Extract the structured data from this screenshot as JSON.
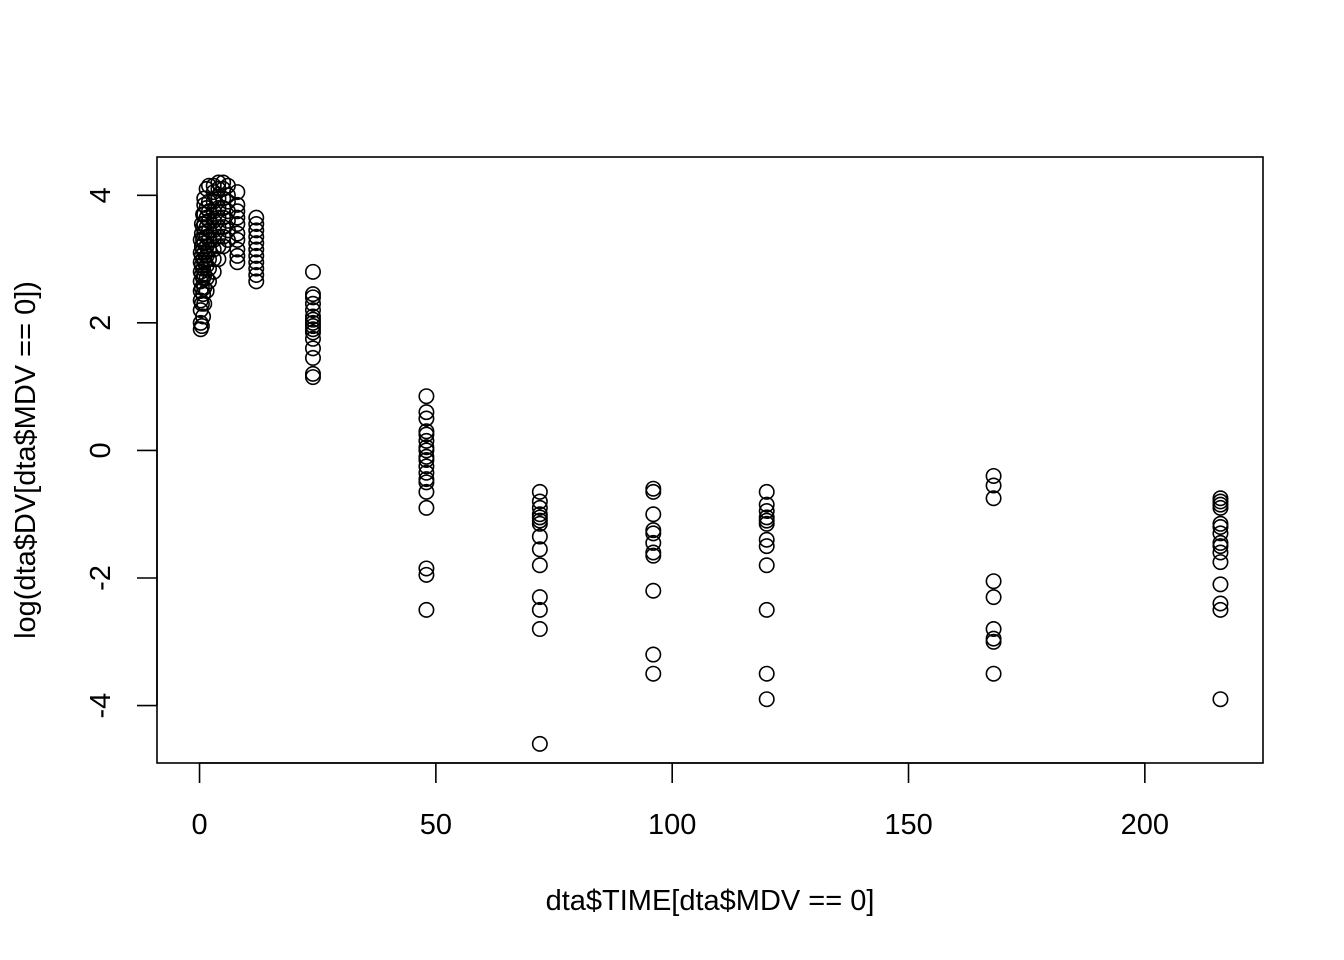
{
  "chart_data": {
    "type": "scatter",
    "title": "",
    "xlabel": "dta$TIME[dta$MDV == 0]",
    "ylabel": "log(dta$DV[dta$MDV == 0])",
    "xlim": [
      -9,
      225
    ],
    "ylim": [
      -4.9,
      4.6
    ],
    "x_ticks": [
      0,
      50,
      100,
      150,
      200
    ],
    "x_tick_labels": [
      "0",
      "50",
      "100",
      "150",
      "200"
    ],
    "y_ticks": [
      -4,
      -2,
      0,
      2,
      4
    ],
    "y_tick_labels": [
      "-4",
      "-2",
      "0",
      "2",
      "4"
    ],
    "marker": "open-circle",
    "color": "#000000",
    "points": [
      [
        0.25,
        1.9
      ],
      [
        0.25,
        2.0
      ],
      [
        0.25,
        2.2
      ],
      [
        0.25,
        2.35
      ],
      [
        0.25,
        2.5
      ],
      [
        0.25,
        2.65
      ],
      [
        0.25,
        2.8
      ],
      [
        0.25,
        2.95
      ],
      [
        0.25,
        3.1
      ],
      [
        0.25,
        3.3
      ],
      [
        0.5,
        1.95
      ],
      [
        0.5,
        2.3
      ],
      [
        0.5,
        2.55
      ],
      [
        0.5,
        2.75
      ],
      [
        0.5,
        2.9
      ],
      [
        0.5,
        3.05
      ],
      [
        0.5,
        3.2
      ],
      [
        0.5,
        3.4
      ],
      [
        0.5,
        3.55
      ],
      [
        0.75,
        2.1
      ],
      [
        0.75,
        2.45
      ],
      [
        0.75,
        2.7
      ],
      [
        0.75,
        2.85
      ],
      [
        0.75,
        3.0
      ],
      [
        0.75,
        3.15
      ],
      [
        0.75,
        3.3
      ],
      [
        0.75,
        3.5
      ],
      [
        0.75,
        3.7
      ],
      [
        1,
        2.3
      ],
      [
        1,
        2.55
      ],
      [
        1,
        2.75
      ],
      [
        1,
        2.95
      ],
      [
        1,
        3.1
      ],
      [
        1,
        3.25
      ],
      [
        1,
        3.4
      ],
      [
        1,
        3.55
      ],
      [
        1,
        3.7
      ],
      [
        1,
        3.85
      ],
      [
        1,
        3.95
      ],
      [
        1.5,
        2.5
      ],
      [
        1.5,
        2.7
      ],
      [
        1.5,
        2.9
      ],
      [
        1.5,
        3.05
      ],
      [
        1.5,
        3.2
      ],
      [
        1.5,
        3.35
      ],
      [
        1.5,
        3.5
      ],
      [
        1.5,
        3.65
      ],
      [
        1.5,
        3.8
      ],
      [
        1.5,
        4.1
      ],
      [
        2,
        2.65
      ],
      [
        2,
        2.85
      ],
      [
        2,
        3.0
      ],
      [
        2,
        3.15
      ],
      [
        2,
        3.3
      ],
      [
        2,
        3.45
      ],
      [
        2,
        3.6
      ],
      [
        2,
        3.75
      ],
      [
        2,
        3.9
      ],
      [
        2,
        4.15
      ],
      [
        3,
        2.8
      ],
      [
        3,
        3.0
      ],
      [
        3,
        3.15
      ],
      [
        3,
        3.3
      ],
      [
        3,
        3.45
      ],
      [
        3,
        3.6
      ],
      [
        3,
        3.75
      ],
      [
        3,
        3.9
      ],
      [
        3,
        4.05
      ],
      [
        3,
        4.15
      ],
      [
        4,
        3.0
      ],
      [
        4,
        3.2
      ],
      [
        4,
        3.35
      ],
      [
        4,
        3.5
      ],
      [
        4,
        3.65
      ],
      [
        4,
        3.8
      ],
      [
        4,
        3.95
      ],
      [
        4,
        4.1
      ],
      [
        4,
        4.2
      ],
      [
        5,
        3.2
      ],
      [
        5,
        3.35
      ],
      [
        5,
        3.5
      ],
      [
        5,
        3.65
      ],
      [
        5,
        3.8
      ],
      [
        5,
        3.95
      ],
      [
        5,
        4.1
      ],
      [
        5,
        4.2
      ],
      [
        6,
        3.3
      ],
      [
        6,
        3.45
      ],
      [
        6,
        3.6
      ],
      [
        6,
        3.75
      ],
      [
        6,
        3.9
      ],
      [
        6,
        4.0
      ],
      [
        6,
        4.15
      ],
      [
        8,
        2.95
      ],
      [
        8,
        3.05
      ],
      [
        8,
        3.15
      ],
      [
        8,
        3.3
      ],
      [
        8,
        3.4
      ],
      [
        8,
        3.55
      ],
      [
        8,
        3.65
      ],
      [
        8,
        3.75
      ],
      [
        8,
        3.85
      ],
      [
        8,
        4.05
      ],
      [
        12,
        2.65
      ],
      [
        12,
        2.75
      ],
      [
        12,
        2.85
      ],
      [
        12,
        2.95
      ],
      [
        12,
        3.05
      ],
      [
        12,
        3.15
      ],
      [
        12,
        3.25
      ],
      [
        12,
        3.35
      ],
      [
        12,
        3.45
      ],
      [
        12,
        3.55
      ],
      [
        12,
        3.65
      ],
      [
        24,
        1.15
      ],
      [
        24,
        1.2
      ],
      [
        24,
        1.45
      ],
      [
        24,
        1.6
      ],
      [
        24,
        1.75
      ],
      [
        24,
        1.85
      ],
      [
        24,
        1.9
      ],
      [
        24,
        1.95
      ],
      [
        24,
        2.0
      ],
      [
        24,
        2.05
      ],
      [
        24,
        2.1
      ],
      [
        24,
        2.2
      ],
      [
        24,
        2.3
      ],
      [
        24,
        2.4
      ],
      [
        24,
        2.45
      ],
      [
        24,
        2.8
      ],
      [
        48,
        -2.5
      ],
      [
        48,
        -1.95
      ],
      [
        48,
        -1.85
      ],
      [
        48,
        -0.9
      ],
      [
        48,
        -0.65
      ],
      [
        48,
        -0.5
      ],
      [
        48,
        -0.45
      ],
      [
        48,
        -0.35
      ],
      [
        48,
        -0.25
      ],
      [
        48,
        -0.15
      ],
      [
        48,
        -0.1
      ],
      [
        48,
        0.0
      ],
      [
        48,
        0.05
      ],
      [
        48,
        0.15
      ],
      [
        48,
        0.25
      ],
      [
        48,
        0.3
      ],
      [
        48,
        0.5
      ],
      [
        48,
        0.6
      ],
      [
        48,
        0.85
      ],
      [
        72,
        -4.6
      ],
      [
        72,
        -2.8
      ],
      [
        72,
        -2.5
      ],
      [
        72,
        -2.3
      ],
      [
        72,
        -1.8
      ],
      [
        72,
        -1.55
      ],
      [
        72,
        -1.35
      ],
      [
        72,
        -1.15
      ],
      [
        72,
        -1.1
      ],
      [
        72,
        -1.05
      ],
      [
        72,
        -1.0
      ],
      [
        72,
        -0.9
      ],
      [
        72,
        -0.8
      ],
      [
        72,
        -0.65
      ],
      [
        96,
        -3.5
      ],
      [
        96,
        -3.2
      ],
      [
        96,
        -2.2
      ],
      [
        96,
        -1.65
      ],
      [
        96,
        -1.6
      ],
      [
        96,
        -1.45
      ],
      [
        96,
        -1.3
      ],
      [
        96,
        -1.25
      ],
      [
        96,
        -1.0
      ],
      [
        96,
        -0.65
      ],
      [
        96,
        -0.6
      ],
      [
        120,
        -3.9
      ],
      [
        120,
        -3.5
      ],
      [
        120,
        -2.5
      ],
      [
        120,
        -1.8
      ],
      [
        120,
        -1.5
      ],
      [
        120,
        -1.4
      ],
      [
        120,
        -1.15
      ],
      [
        120,
        -1.1
      ],
      [
        120,
        -1.05
      ],
      [
        120,
        -0.95
      ],
      [
        120,
        -0.85
      ],
      [
        120,
        -0.65
      ],
      [
        168,
        -3.5
      ],
      [
        168,
        -3.0
      ],
      [
        168,
        -2.95
      ],
      [
        168,
        -2.8
      ],
      [
        168,
        -2.3
      ],
      [
        168,
        -2.05
      ],
      [
        168,
        -0.75
      ],
      [
        168,
        -0.55
      ],
      [
        168,
        -0.4
      ],
      [
        216,
        -3.9
      ],
      [
        216,
        -2.5
      ],
      [
        216,
        -2.4
      ],
      [
        216,
        -2.1
      ],
      [
        216,
        -1.75
      ],
      [
        216,
        -1.6
      ],
      [
        216,
        -1.5
      ],
      [
        216,
        -1.45
      ],
      [
        216,
        -1.3
      ],
      [
        216,
        -1.2
      ],
      [
        216,
        -1.15
      ],
      [
        216,
        -0.9
      ],
      [
        216,
        -0.85
      ],
      [
        216,
        -0.8
      ],
      [
        216,
        -0.75
      ]
    ]
  }
}
